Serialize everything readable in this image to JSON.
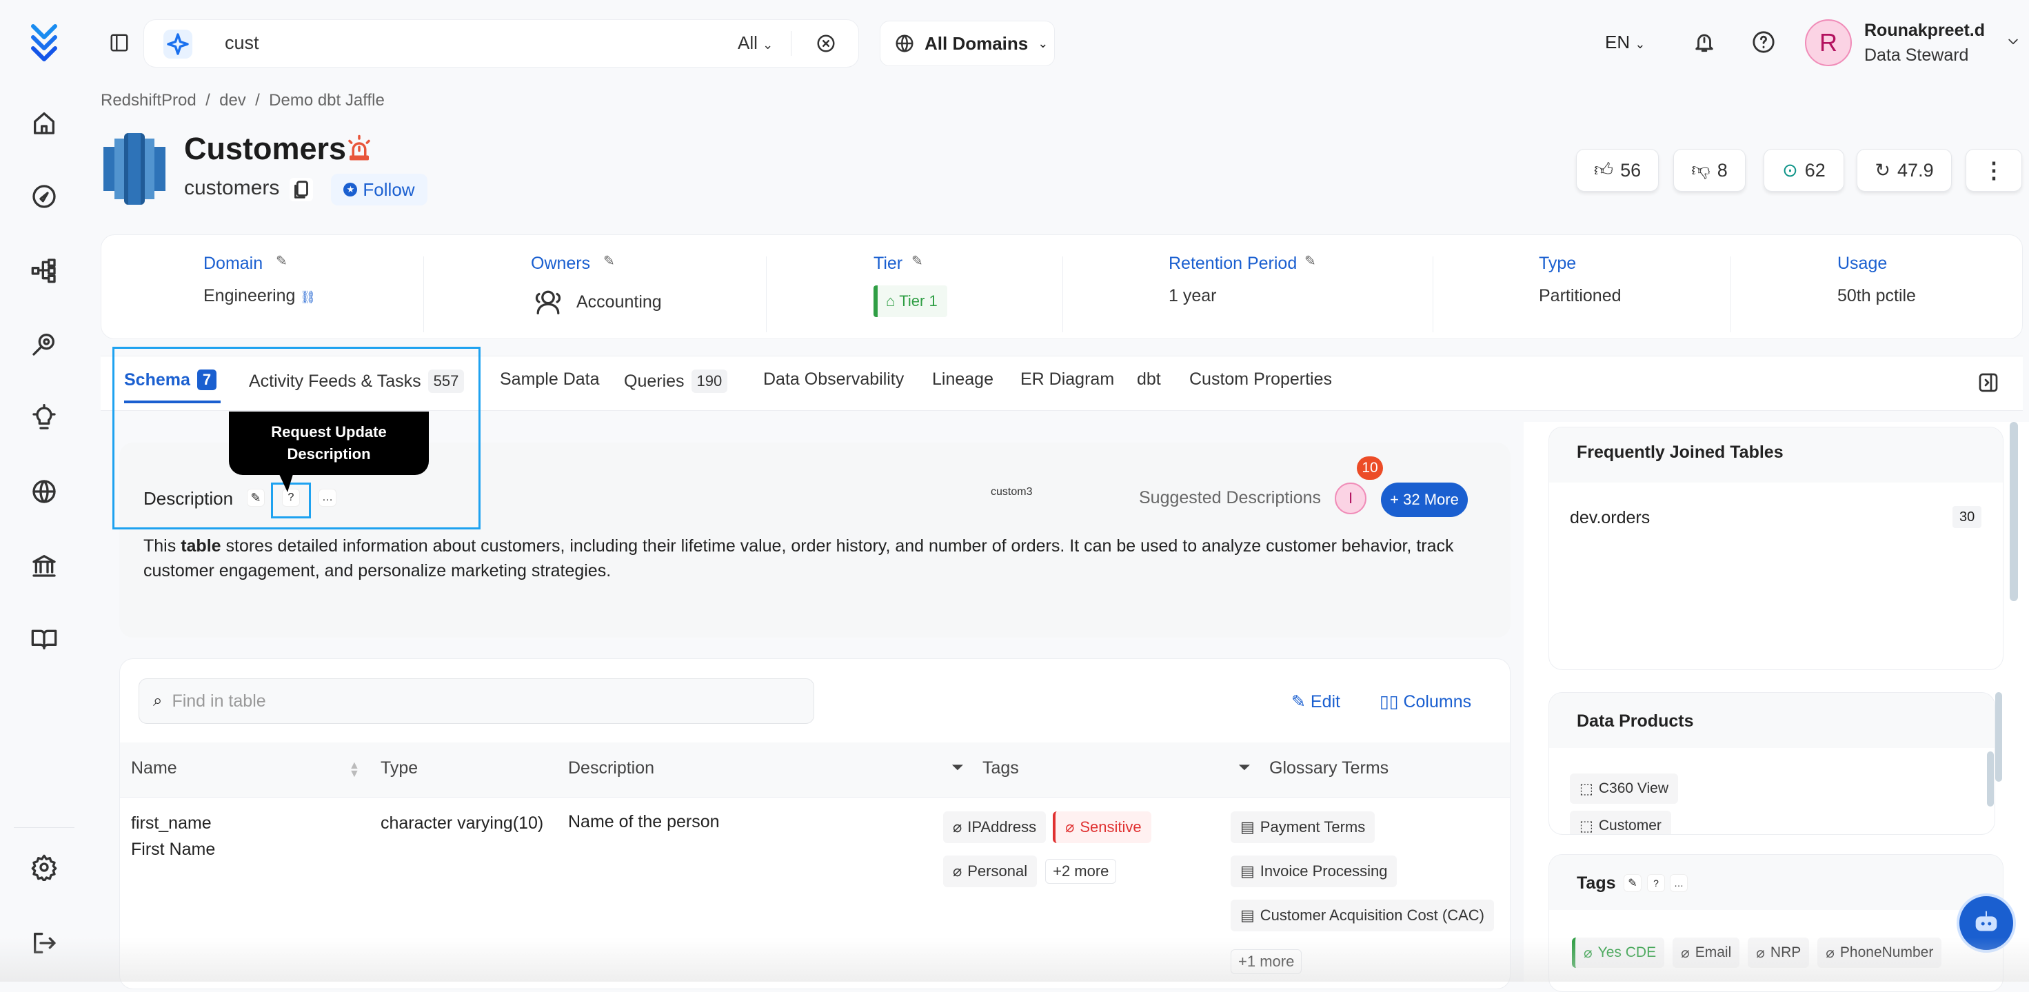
{
  "topbar": {
    "search_value": "cust",
    "search_scope": "All",
    "domains": "All Domains",
    "language": "EN",
    "user_name": "Rounakpreet.d",
    "user_role": "Data Steward",
    "avatar_letter": "R"
  },
  "breadcrumb": [
    "RedshiftProd",
    "dev",
    "Demo dbt Jaffle"
  ],
  "entity": {
    "title": "Customers",
    "name": "customers",
    "follow": "Follow"
  },
  "stats": {
    "likes": "56",
    "dislikes": "8",
    "followers": "62",
    "version": "47.9"
  },
  "info": [
    {
      "label": "Domain",
      "value": "Engineering"
    },
    {
      "label": "Owners",
      "value": "Accounting"
    },
    {
      "label": "Tier",
      "value": "Tier 1"
    },
    {
      "label": "Retention Period",
      "value": "1 year"
    },
    {
      "label": "Type",
      "value": "Partitioned"
    },
    {
      "label": "Usage",
      "value": "50th pctile"
    }
  ],
  "tabs": [
    {
      "label": "Schema",
      "count": "7"
    },
    {
      "label": "Activity Feeds & Tasks",
      "count": "557"
    },
    {
      "label": "Sample Data"
    },
    {
      "label": "Queries",
      "count": "190"
    },
    {
      "label": "Data Observability"
    },
    {
      "label": "Lineage"
    },
    {
      "label": "ER Diagram"
    },
    {
      "label": "dbt"
    },
    {
      "label": "Custom Properties"
    }
  ],
  "tooltip": {
    "line1": "Request Update",
    "line2": "Description"
  },
  "description": {
    "label": "Description",
    "custom": "custom3",
    "suggested": "Suggested Descriptions",
    "suggest_avatar": "I",
    "badge": "10",
    "more": "+ 32 More",
    "text_pre": "This ",
    "text_bold": "table",
    "text_post": " stores detailed information about customers, including their lifetime value, order history, and number of orders. It can be used to analyze customer behavior, track customer engagement, and personalize marketing strategies."
  },
  "table": {
    "search_placeholder": "Find in table",
    "edit": "Edit",
    "columns": "Columns",
    "headers": [
      "Name",
      "Type",
      "Description",
      "Tags",
      "Glossary Terms"
    ],
    "rows": [
      {
        "name": "first_name",
        "display_name": "First Name",
        "type": "character varying(10)",
        "description": "Name of the person",
        "tags": [
          "IPAddress",
          "Sensitive",
          "Personal"
        ],
        "tags_more": "+2 more",
        "glossary": [
          "Payment Terms",
          "Invoice Processing",
          "Customer Acquisition Cost (CAC)"
        ],
        "glossary_more": "+1 more"
      }
    ]
  },
  "right": {
    "joined": {
      "title": "Frequently Joined Tables",
      "items": [
        {
          "name": "dev.orders",
          "count": "30"
        }
      ]
    },
    "products": {
      "title": "Data Products",
      "items": [
        "C360 View",
        "Customer"
      ]
    },
    "tags": {
      "title": "Tags",
      "items": [
        "Yes CDE",
        "Email",
        "NRP",
        "PhoneNumber"
      ]
    }
  },
  "colors": {
    "accent": "#1a5fd0",
    "sensitive": "#e03131",
    "tier": "#2f9e44",
    "highlight": "#1ea2f0"
  }
}
